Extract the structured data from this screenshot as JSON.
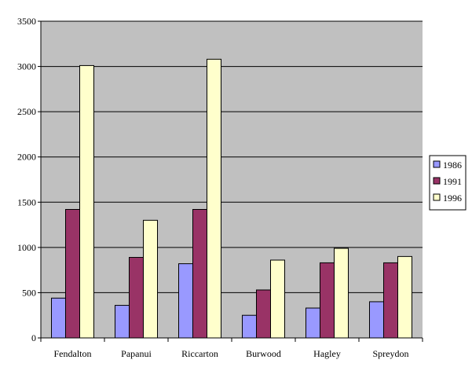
{
  "chart_data": {
    "type": "bar",
    "title": "",
    "xlabel": "",
    "ylabel": "",
    "categories": [
      "Fendalton",
      "Papanui",
      "Riccarton",
      "Burwood",
      "Hagley",
      "Spreydon"
    ],
    "series": [
      {
        "name": "1986",
        "values": [
          440,
          360,
          820,
          250,
          330,
          400
        ],
        "color": "#9999ff"
      },
      {
        "name": "1991",
        "values": [
          1420,
          890,
          1420,
          530,
          830,
          830
        ],
        "color": "#993366"
      },
      {
        "name": "1996",
        "values": [
          3010,
          1300,
          3080,
          860,
          990,
          900
        ],
        "color": "#ffffcc"
      }
    ],
    "ylim": [
      0,
      3500
    ],
    "yticks": [
      "0",
      "500",
      "1000",
      "1500",
      "2000",
      "2500",
      "3000",
      "3500"
    ],
    "grid": true,
    "plot_background": "#c0c0c0",
    "legend_position": "right"
  }
}
